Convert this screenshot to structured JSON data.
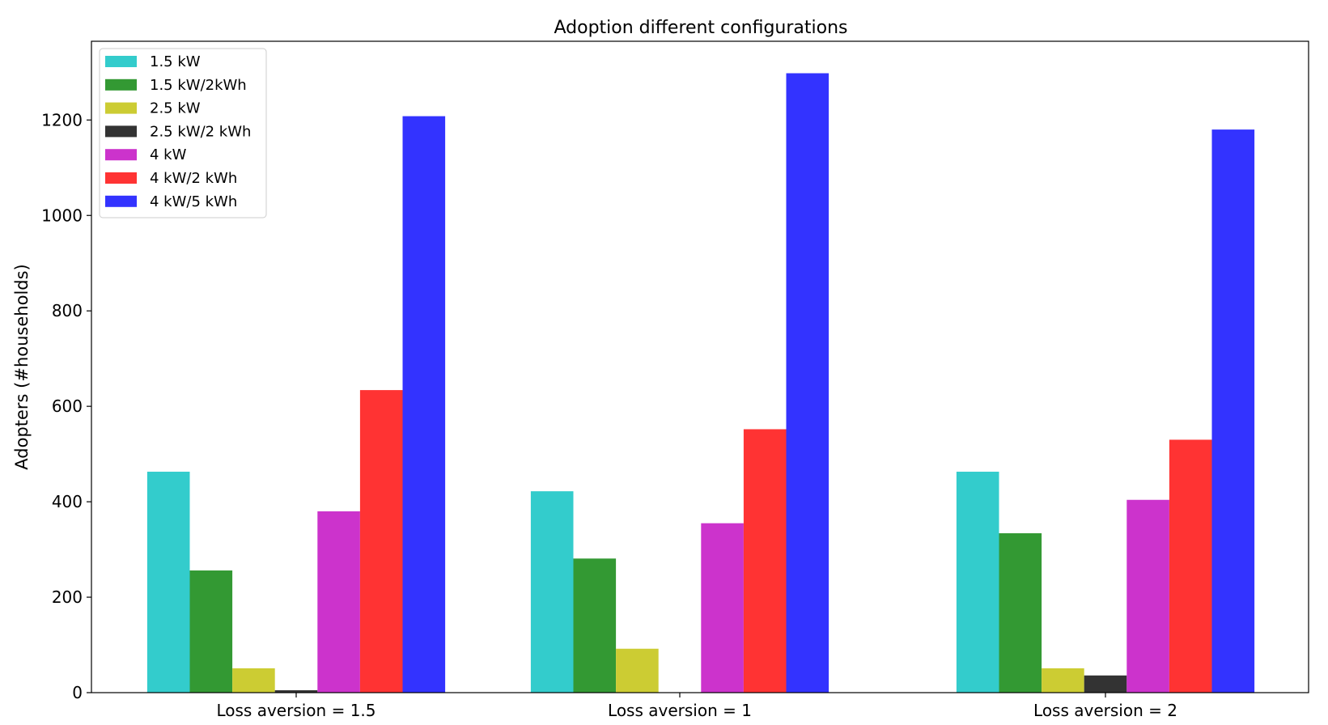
{
  "chart_data": {
    "type": "bar",
    "title": "Adoption different configurations",
    "xlabel": "",
    "ylabel": "Adopters (#households)",
    "categories": [
      "Loss aversion = 1.5",
      "Loss aversion = 1",
      "Loss aversion = 2"
    ],
    "series": [
      {
        "name": "1.5 kW",
        "color": "#33cccc",
        "values": [
          463,
          422,
          463
        ]
      },
      {
        "name": "1.5 kW/2kWh",
        "color": "#339933",
        "values": [
          256,
          281,
          334
        ]
      },
      {
        "name": "2.5 kW",
        "color": "#cccc33",
        "values": [
          51,
          92,
          51
        ]
      },
      {
        "name": "2.5 kW/2 kWh",
        "color": "#333333",
        "values": [
          5,
          0,
          36
        ]
      },
      {
        "name": "4 kW",
        "color": "#cc33cc",
        "values": [
          380,
          355,
          404
        ]
      },
      {
        "name": "4 kW/2 kWh",
        "color": "#ff3333",
        "values": [
          634,
          552,
          530
        ]
      },
      {
        "name": "4 kW/5 kWh",
        "color": "#3333ff",
        "values": [
          1208,
          1298,
          1180
        ]
      }
    ],
    "ylim": [
      0,
      1365
    ],
    "yticks": [
      0,
      200,
      400,
      600,
      800,
      1000,
      1200
    ],
    "grid": false,
    "legend_position": "top-left"
  }
}
